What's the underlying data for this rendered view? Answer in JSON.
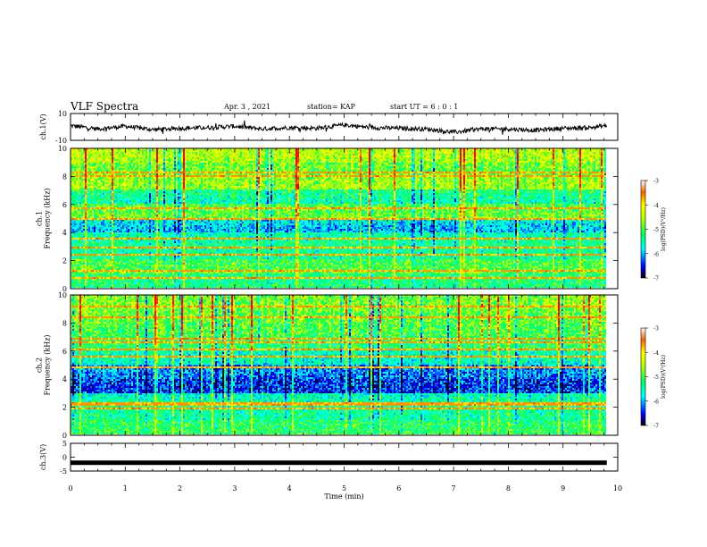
{
  "header": {
    "title": "VLF Spectra",
    "date": "Apr. 3 , 2021",
    "station": "station= KAP",
    "start": "start  UT =   6 : 0  : 1"
  },
  "chart_data": [
    {
      "type": "line",
      "panel": "ch1-waveform",
      "ylabel": "ch.1(V)",
      "ylim": [
        -10,
        10
      ],
      "yticks": [
        "10",
        "-10"
      ],
      "xlim": [
        0,
        10
      ],
      "x": [
        0,
        0.5,
        1,
        1.5,
        2,
        2.5,
        3,
        3.5,
        4,
        4.5,
        5,
        5.5,
        6,
        6.5,
        7,
        7.5,
        8,
        8.5,
        9,
        9.5,
        9.8
      ],
      "values": [
        1,
        -1.5,
        0.5,
        -2,
        -1,
        -0.5,
        0.5,
        -1.5,
        -0.5,
        -1,
        1.5,
        -0.5,
        -1,
        -1.5,
        -4,
        -1.5,
        -1.5,
        -2.5,
        -1,
        -0.5,
        1
      ]
    },
    {
      "type": "heatmap",
      "panel": "ch1-spectrogram",
      "ylabel": "ch.1\nFrequency (kHz)",
      "ylim": [
        0,
        10
      ],
      "yticks": [
        "0",
        "2",
        "4",
        "6",
        "8",
        "10"
      ],
      "xlim": [
        0,
        10
      ],
      "colorbar": {
        "label": "log(PSD)(V²/Hz)",
        "range": [
          -7,
          -3
        ],
        "ticks": [
          "-3",
          "-4",
          "-5",
          "-6",
          "-7"
        ]
      },
      "band_levels_low_to_high": [
        -5.3,
        -4.9,
        -5.4,
        -5.3,
        -6.0,
        -4.8,
        -5.5,
        -4.6,
        -4.9,
        -4.6,
        -4.1
      ]
    },
    {
      "type": "heatmap",
      "panel": "ch2-spectrogram",
      "ylabel": "ch.2\nFrequency (kHz)",
      "ylim": [
        0,
        10
      ],
      "yticks": [
        "0",
        "2",
        "4",
        "6",
        "8",
        "10"
      ],
      "xlim": [
        0,
        10
      ],
      "colorbar": {
        "label": "log(PSD)(V²/Hz)",
        "range": [
          -7,
          -3
        ],
        "ticks": [
          "-3",
          "-4",
          "-5",
          "-6",
          "-7"
        ]
      },
      "band_levels_low_to_high": [
        -5.1,
        -5.4,
        -5.3,
        -6.4,
        -6.2,
        -5.6,
        -5.2,
        -5.0,
        -4.9,
        -4.8,
        -4.7
      ]
    },
    {
      "type": "line",
      "panel": "ch3-waveform",
      "ylabel": "ch.3(V)",
      "ylim": [
        -5,
        5
      ],
      "yticks": [
        "5",
        "0",
        "-5"
      ],
      "xlim": [
        0,
        10
      ],
      "x": [
        0,
        9.8
      ],
      "values": [
        -2,
        -2
      ],
      "xlabel": "Time  (min)",
      "xticks": [
        "0",
        "1",
        "2",
        "3",
        "4",
        "5",
        "6",
        "7",
        "8",
        "9",
        "10"
      ]
    }
  ],
  "colors": {
    "background": "#ffffff",
    "axis": "#000000",
    "colormap": [
      "#000080",
      "#0000ff",
      "#0080ff",
      "#00ffff",
      "#00ff80",
      "#80ff00",
      "#ffff00",
      "#ff8000",
      "#ff0000",
      "#800000"
    ]
  }
}
